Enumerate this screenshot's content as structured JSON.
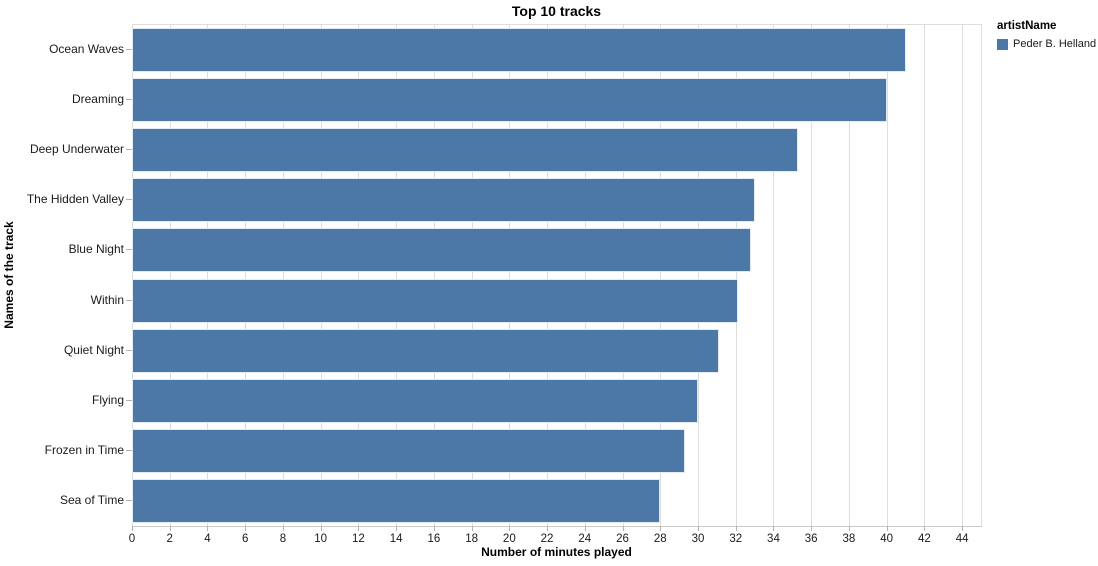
{
  "chart_data": {
    "type": "bar",
    "orientation": "horizontal",
    "title": "Top 10 tracks",
    "xlabel": "Number of minutes played",
    "ylabel": "Names of the track",
    "categories": [
      "Ocean Waves",
      "Dreaming",
      "Deep Underwater",
      "The Hidden Valley",
      "Blue Night",
      "Within",
      "Quiet Night",
      "Flying",
      "Frozen in Time",
      "Sea of Time"
    ],
    "values": [
      41,
      40,
      35.3,
      33,
      32.8,
      32.1,
      31.1,
      30,
      29.3,
      28
    ],
    "xlim": [
      0,
      45
    ],
    "xticks": [
      0,
      2,
      4,
      6,
      8,
      10,
      12,
      14,
      16,
      18,
      20,
      22,
      24,
      26,
      28,
      30,
      32,
      34,
      36,
      38,
      40,
      42,
      44
    ],
    "grid": true,
    "legend": {
      "title": "artistName",
      "position": "top-right",
      "items": [
        {
          "label": "Peder B. Helland",
          "color": "#4c78a8"
        }
      ]
    }
  },
  "colors": {
    "bar": "#4c78a8",
    "grid": "#dddddd",
    "axis": "#b3b3b3",
    "label": "#1a1a1a",
    "background": "#ffffff"
  }
}
